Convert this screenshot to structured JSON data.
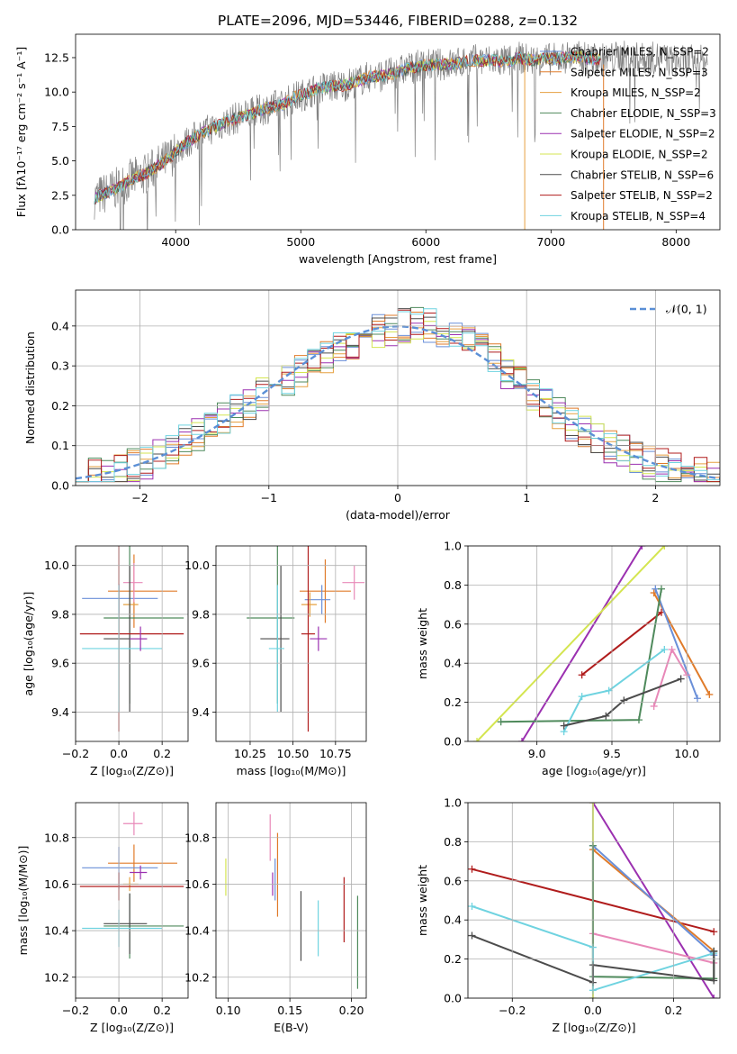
{
  "chart_data": [
    {
      "type": "line",
      "title": "PLATE=2096, MJD=53446, FIBERID=0288, z=0.132",
      "xlabel": "wavelength [Angstrom, rest frame]",
      "ylabel": "Flux [fλ10⁻¹⁷ erg cm⁻² s⁻¹ A⁻¹]",
      "xlim": [
        3200,
        8350
      ],
      "ylim": [
        0,
        14.2
      ],
      "xticks": [
        "4000",
        "5000",
        "6000",
        "7000",
        "8000"
      ],
      "yticks": [
        "0.0",
        "2.5",
        "5.0",
        "7.5",
        "10.0",
        "12.5"
      ],
      "grid": false,
      "legend_position": "upper-right",
      "series": [
        {
          "name": "Chabrier MILES, N_SSP=2",
          "color": "#6a8fd8"
        },
        {
          "name": "Salpeter MILES, N_SSP=3",
          "color": "#e07b2a"
        },
        {
          "name": "Kroupa MILES, N_SSP=2",
          "color": "#e6a040"
        },
        {
          "name": "Chabrier ELODIE, N_SSP=3",
          "color": "#4f8a5c"
        },
        {
          "name": "Salpeter ELODIE, N_SSP=2",
          "color": "#9b30b0"
        },
        {
          "name": "Kroupa ELODIE, N_SSP=2",
          "color": "#d4e550"
        },
        {
          "name": "Chabrier STELIB, N_SSP=6",
          "color": "#4c4c4c"
        },
        {
          "name": "Salpeter STELIB, N_SSP=2",
          "color": "#b01c1c"
        },
        {
          "name": "Kroupa STELIB, N_SSP=4",
          "color": "#6fd3e0"
        }
      ],
      "spectrum": {
        "x": [
          3350,
          3450,
          3550,
          3650,
          3750,
          3850,
          3950,
          4050,
          4150,
          4250,
          4350,
          4450,
          4550,
          4650,
          4750,
          4850,
          4950,
          5050,
          5150,
          5250,
          5350,
          5450,
          5550,
          5650,
          5750,
          5850,
          5950,
          6050,
          6150,
          6250,
          6350,
          6450,
          6550,
          6650,
          6750,
          6850,
          6950,
          7050,
          7150,
          7250,
          7350,
          7450,
          7550,
          7650,
          7750,
          7850,
          7950,
          8050,
          8150,
          8250
        ],
        "y": [
          2.3,
          2.7,
          3.1,
          3.7,
          4.0,
          4.6,
          5.2,
          6.1,
          6.7,
          7.2,
          7.6,
          8.0,
          8.3,
          8.6,
          8.9,
          9.1,
          9.6,
          9.9,
          10.3,
          10.4,
          10.5,
          10.8,
          11.1,
          11.2,
          11.4,
          11.7,
          11.9,
          12.0,
          12.0,
          12.1,
          12.3,
          12.3,
          12.3,
          12.2,
          12.5,
          12.3,
          12.4,
          12.4,
          12.6,
          12.5,
          12.4,
          12.4,
          12.6,
          12.5,
          12.4,
          12.5,
          12.3,
          12.2,
          12.3,
          12.2
        ]
      }
    },
    {
      "type": "line",
      "xlabel": "(data-model)/error",
      "ylabel": "Normed distribution",
      "xlim": [
        -2.5,
        2.5
      ],
      "ylim": [
        0,
        0.49
      ],
      "xticks": [
        "−2",
        "−1",
        "0",
        "1",
        "2"
      ],
      "yticks": [
        "0.0",
        "0.1",
        "0.2",
        "0.3",
        "0.4"
      ],
      "grid": true,
      "legend_position": "upper-right",
      "legend_label": "𝒩(0, 1)",
      "reference_curve": "normal(0,1)",
      "series_colors": [
        "#6a8fd8",
        "#e07b2a",
        "#e6a040",
        "#4f8a5c",
        "#9b30b0",
        "#d4e550",
        "#4c4c4c",
        "#b01c1c",
        "#6fd3e0"
      ]
    },
    {
      "type": "scatter",
      "xlabel": "Z [log₁₀(Z/Z⊙)]",
      "ylabel": "age  [log₁₀(age/yr)]",
      "xlim": [
        -0.2,
        0.32
      ],
      "ylim": [
        9.28,
        10.08
      ],
      "xticks": [
        "−0.2",
        "0.0",
        "0.2"
      ],
      "yticks": [
        "9.4",
        "9.6",
        "9.8",
        "10.0"
      ],
      "grid": true,
      "errorbars": [
        {
          "x": 0.07,
          "xerr": [
            0.12,
            0.2
          ],
          "y": 9.895,
          "yerr": 0.15,
          "color": "#e07b2a"
        },
        {
          "x": 0.0,
          "xerr": [
            0.17,
            0.18
          ],
          "y": 9.865,
          "yerr": 0.06,
          "color": "#6a8fd8"
        },
        {
          "x": 0.07,
          "xerr": [
            0.05,
            0.04
          ],
          "y": 9.93,
          "yerr": 0.08,
          "color": "#e888b8"
        },
        {
          "x": 0.05,
          "xerr": [
            0.03,
            0.04
          ],
          "y": 9.84,
          "yerr": 0.05,
          "color": "#e6a040"
        },
        {
          "x": 0.05,
          "xerr": [
            0.12,
            0.25
          ],
          "y": 9.785,
          "yerr": 0.35,
          "color": "#4f8a5c"
        },
        {
          "x": 0.05,
          "xerr": [
            0.12,
            0.08
          ],
          "y": 9.7,
          "yerr": 0.3,
          "color": "#4c4c4c"
        },
        {
          "x": 0.0,
          "xerr": [
            0.18,
            0.3
          ],
          "y": 9.72,
          "yerr": 0.4,
          "color": "#b01c1c"
        },
        {
          "x": 0.0,
          "xerr": [
            0.17,
            0.2
          ],
          "y": 9.66,
          "yerr": 0.26,
          "color": "#6fd3e0"
        },
        {
          "x": 0.1,
          "xerr": [
            0.05,
            0.03
          ],
          "y": 9.7,
          "yerr": 0.05,
          "color": "#9b30b0"
        }
      ]
    },
    {
      "type": "scatter",
      "xlabel": "mass [log₁₀(M/M⊙)]",
      "xlim": [
        10.05,
        10.93
      ],
      "ylim": [
        9.28,
        10.08
      ],
      "xticks": [
        "10.25",
        "10.50",
        "10.75"
      ],
      "yticks": [
        "9.4",
        "9.6",
        "9.8",
        "10.0"
      ],
      "grid": true,
      "errorbars": [
        {
          "x": 10.69,
          "xerr": [
            0.15,
            0.15
          ],
          "y": 9.895,
          "yerr": 0.13,
          "color": "#e07b2a"
        },
        {
          "x": 10.67,
          "xerr": [
            0.1,
            0.05
          ],
          "y": 9.86,
          "yerr": 0.06,
          "color": "#6a8fd8"
        },
        {
          "x": 10.86,
          "xerr": [
            0.07,
            0.06
          ],
          "y": 9.93,
          "yerr": 0.07,
          "color": "#e888b8"
        },
        {
          "x": 10.6,
          "xerr": [
            0.05,
            0.04
          ],
          "y": 9.84,
          "yerr": 0.05,
          "color": "#e6a040"
        },
        {
          "x": 10.41,
          "xerr": [
            0.18,
            0.1
          ],
          "y": 9.785,
          "yerr": 0.35,
          "color": "#4f8a5c"
        },
        {
          "x": 10.43,
          "xerr": [
            0.12,
            0.05
          ],
          "y": 9.7,
          "yerr": 0.3,
          "color": "#4c4c4c"
        },
        {
          "x": 10.59,
          "xerr": [
            0.04,
            0.04
          ],
          "y": 9.72,
          "yerr": 0.4,
          "color": "#b01c1c"
        },
        {
          "x": 10.41,
          "xerr": [
            0.05,
            0.04
          ],
          "y": 9.66,
          "yerr": 0.26,
          "color": "#6fd3e0"
        },
        {
          "x": 10.65,
          "xerr": [
            0.05,
            0.05
          ],
          "y": 9.7,
          "yerr": 0.05,
          "color": "#9b30b0"
        }
      ]
    },
    {
      "type": "line",
      "xlabel": "age  [log₁₀(age/yr)]",
      "ylabel": "mass weight",
      "xlim": [
        8.54,
        10.22
      ],
      "ylim": [
        0,
        1.0
      ],
      "xticks": [
        "9.0",
        "9.5",
        "10.0"
      ],
      "yticks": [
        "0.0",
        "0.2",
        "0.4",
        "0.6",
        "0.8",
        "1.0"
      ],
      "grid": true,
      "series": [
        {
          "color": "#9b30b0",
          "x": [
            8.9,
            9.7
          ],
          "y": [
            0.0,
            1.0
          ]
        },
        {
          "color": "#d4e550",
          "x": [
            8.6,
            9.85
          ],
          "y": [
            0.0,
            1.0
          ]
        },
        {
          "color": "#b01c1c",
          "x": [
            9.3,
            9.83
          ],
          "y": [
            0.34,
            0.66
          ]
        },
        {
          "color": "#e07b2a",
          "x": [
            9.78,
            10.15
          ],
          "y": [
            0.76,
            0.24
          ]
        },
        {
          "color": "#6a8fd8",
          "x": [
            9.79,
            10.07
          ],
          "y": [
            0.78,
            0.22
          ]
        },
        {
          "color": "#4f8a5c",
          "x": [
            8.76,
            9.68,
            9.83
          ],
          "y": [
            0.1,
            0.11,
            0.78
          ]
        },
        {
          "color": "#e888b8",
          "x": [
            9.78,
            9.9,
            10.0
          ],
          "y": [
            0.18,
            0.47,
            0.34
          ]
        },
        {
          "color": "#6fd3e0",
          "x": [
            9.18,
            9.3,
            9.48,
            9.85
          ],
          "y": [
            0.05,
            0.23,
            0.26,
            0.47
          ]
        },
        {
          "color": "#4c4c4c",
          "x": [
            9.18,
            9.46,
            9.58,
            9.96
          ],
          "y": [
            0.08,
            0.13,
            0.21,
            0.32
          ]
        }
      ]
    },
    {
      "type": "scatter",
      "xlabel": "Z [log₁₀(Z/Z⊙)]",
      "ylabel": "mass [log₁₀(M/M⊙)]",
      "xlim": [
        -0.2,
        0.32
      ],
      "ylim": [
        10.11,
        10.95
      ],
      "xticks": [
        "−0.2",
        "0.0",
        "0.2"
      ],
      "yticks": [
        "10.2",
        "10.4",
        "10.6",
        "10.8"
      ],
      "grid": true,
      "errorbars": [
        {
          "x": 0.07,
          "xerr": [
            0.12,
            0.2
          ],
          "y": 10.69,
          "yerr": 0.08,
          "color": "#e07b2a"
        },
        {
          "x": 0.0,
          "xerr": [
            0.17,
            0.18
          ],
          "y": 10.67,
          "yerr": 0.09,
          "color": "#6a8fd8"
        },
        {
          "x": 0.07,
          "xerr": [
            0.05,
            0.04
          ],
          "y": 10.86,
          "yerr": 0.05,
          "color": "#e888b8"
        },
        {
          "x": 0.05,
          "xerr": [
            0.03,
            0.04
          ],
          "y": 10.6,
          "yerr": 0.03,
          "color": "#e6a040"
        },
        {
          "x": 0.05,
          "xerr": [
            0.12,
            0.25
          ],
          "y": 10.42,
          "yerr": 0.14,
          "color": "#4f8a5c"
        },
        {
          "x": 0.05,
          "xerr": [
            0.12,
            0.08
          ],
          "y": 10.43,
          "yerr": 0.13,
          "color": "#4c4c4c"
        },
        {
          "x": 0.0,
          "xerr": [
            0.18,
            0.3
          ],
          "y": 10.59,
          "yerr": 0.06,
          "color": "#b01c1c"
        },
        {
          "x": 0.0,
          "xerr": [
            0.17,
            0.2
          ],
          "y": 10.41,
          "yerr": 0.08,
          "color": "#6fd3e0"
        },
        {
          "x": 0.1,
          "xerr": [
            0.05,
            0.03
          ],
          "y": 10.65,
          "yerr": 0.03,
          "color": "#9b30b0"
        }
      ]
    },
    {
      "type": "scatter",
      "xlabel": "E(B-V)",
      "xlim": [
        0.09,
        0.212
      ],
      "ylim": [
        10.11,
        10.95
      ],
      "xticks": [
        "0.10",
        "0.15",
        "0.20"
      ],
      "yticks": [
        "10.2",
        "10.4",
        "10.6",
        "10.8"
      ],
      "grid": true,
      "errorbars": [
        {
          "x": 0.098,
          "y": 10.63,
          "yerr": 0.08,
          "color": "#d4e550"
        },
        {
          "x": 0.134,
          "y": 10.8,
          "yerr": 0.1,
          "color": "#e888b8"
        },
        {
          "x": 0.138,
          "y": 10.62,
          "yerr": 0.09,
          "color": "#6a8fd8"
        },
        {
          "x": 0.14,
          "y": 10.64,
          "yerr": 0.18,
          "color": "#e07b2a"
        },
        {
          "x": 0.136,
          "y": 10.6,
          "yerr": 0.05,
          "color": "#9b30b0"
        },
        {
          "x": 0.159,
          "y": 10.42,
          "yerr": 0.15,
          "color": "#4c4c4c"
        },
        {
          "x": 0.173,
          "y": 10.41,
          "yerr": 0.12,
          "color": "#6fd3e0"
        },
        {
          "x": 0.194,
          "y": 10.49,
          "yerr": 0.14,
          "color": "#b01c1c"
        },
        {
          "x": 0.205,
          "y": 10.35,
          "yerr": 0.2,
          "color": "#4f8a5c"
        }
      ]
    },
    {
      "type": "line",
      "xlabel": "Z [log₁₀(Z/Z⊙)]",
      "ylabel": "mass weight",
      "xlim": [
        -0.31,
        0.315
      ],
      "ylim": [
        0,
        1.0
      ],
      "xticks": [
        "−0.2",
        "0.0",
        "0.2"
      ],
      "yticks": [
        "0.0",
        "0.2",
        "0.4",
        "0.6",
        "0.8",
        "1.0"
      ],
      "grid": true,
      "series": [
        {
          "color": "#9b30b0",
          "x": [
            0.0,
            0.3
          ],
          "y": [
            1.0,
            0.0
          ]
        },
        {
          "color": "#d4e550",
          "x": [
            0.0,
            0.0
          ],
          "y": [
            1.0,
            0.0
          ]
        },
        {
          "color": "#b01c1c",
          "x": [
            -0.3,
            0.3
          ],
          "y": [
            0.66,
            0.34
          ]
        },
        {
          "color": "#e07b2a",
          "x": [
            0.0,
            0.3
          ],
          "y": [
            0.76,
            0.24
          ]
        },
        {
          "color": "#6a8fd8",
          "x": [
            0.0,
            0.3
          ],
          "y": [
            0.78,
            0.22
          ]
        },
        {
          "color": "#e888b8",
          "x": [
            0.0,
            0.3
          ],
          "y": [
            0.33,
            0.18
          ]
        },
        {
          "color": "#4f8a5c",
          "x": [
            0.0,
            0.0,
            0.3,
            0.3
          ],
          "y": [
            0.78,
            0.11,
            0.1,
            0.24
          ]
        },
        {
          "color": "#6fd3e0",
          "x": [
            -0.3,
            0.0,
            0.0,
            0.3
          ],
          "y": [
            0.47,
            0.26,
            0.04,
            0.23
          ]
        },
        {
          "color": "#4c4c4c",
          "x": [
            -0.3,
            0.0,
            0.0,
            0.3,
            0.3
          ],
          "y": [
            0.32,
            0.08,
            0.17,
            0.09,
            0.24
          ]
        }
      ]
    }
  ]
}
